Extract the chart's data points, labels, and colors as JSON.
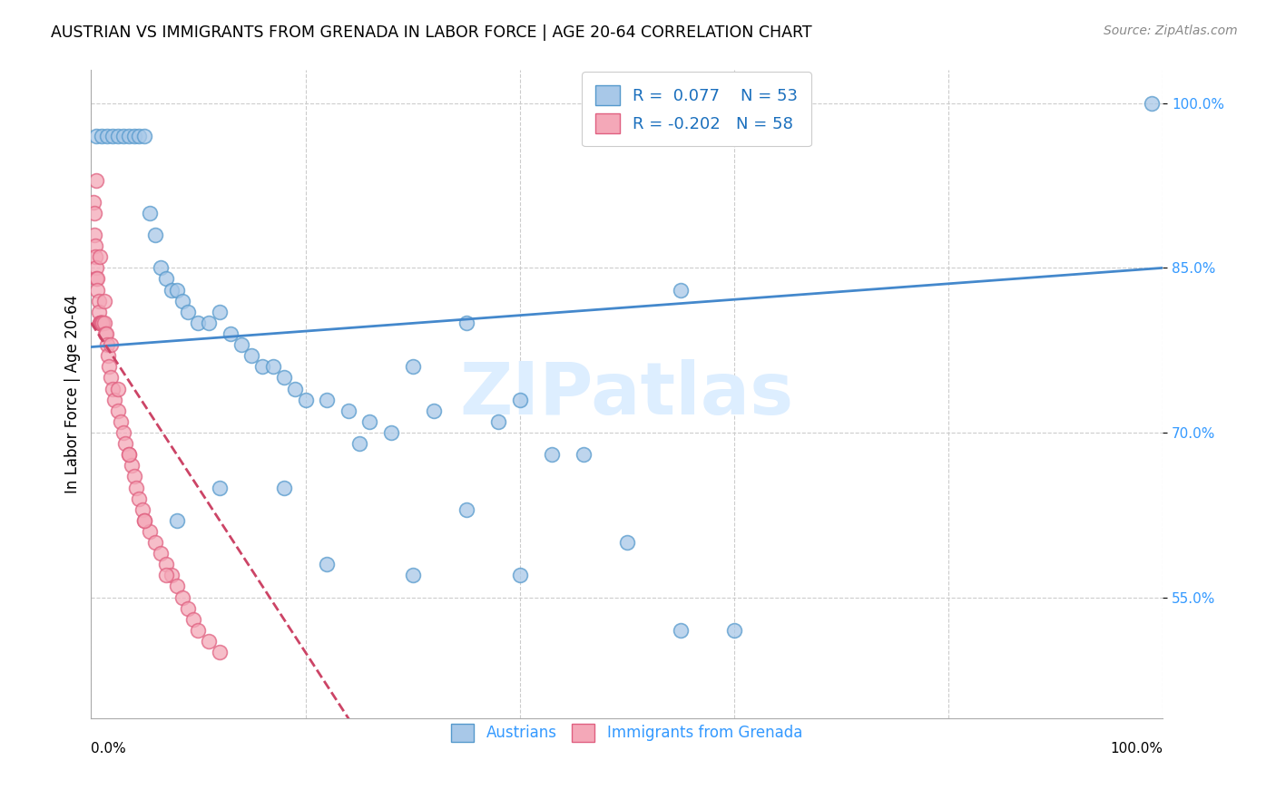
{
  "title": "AUSTRIAN VS IMMIGRANTS FROM GRENADA IN LABOR FORCE | AGE 20-64 CORRELATION CHART",
  "source": "Source: ZipAtlas.com",
  "ylabel": "In Labor Force | Age 20-64",
  "ytick_values": [
    0.55,
    0.7,
    0.85,
    1.0
  ],
  "ytick_labels": [
    "55.0%",
    "70.0%",
    "85.0%",
    "100.0%"
  ],
  "xlim": [
    0.0,
    1.0
  ],
  "ylim": [
    0.44,
    1.03
  ],
  "legend_r_blue": "0.077",
  "legend_n_blue": "53",
  "legend_r_pink": "-0.202",
  "legend_n_pink": "58",
  "blue_fill": "#a8c8e8",
  "blue_edge": "#5599cc",
  "pink_fill": "#f4a8b8",
  "pink_edge": "#e06080",
  "blue_line": "#4488cc",
  "pink_line": "#cc4466",
  "watermark_color": "#ddeeff",
  "austrians_x": [
    0.005,
    0.01,
    0.015,
    0.02,
    0.025,
    0.03,
    0.035,
    0.04,
    0.045,
    0.05,
    0.055,
    0.06,
    0.065,
    0.07,
    0.075,
    0.08,
    0.085,
    0.09,
    0.1,
    0.11,
    0.12,
    0.13,
    0.14,
    0.15,
    0.16,
    0.17,
    0.18,
    0.19,
    0.2,
    0.22,
    0.24,
    0.26,
    0.28,
    0.3,
    0.32,
    0.35,
    0.38,
    0.4,
    0.43,
    0.46,
    0.5,
    0.55,
    0.6,
    0.35,
    0.25,
    0.18,
    0.12,
    0.08,
    0.22,
    0.3,
    0.4,
    0.55,
    0.99
  ],
  "austrians_y": [
    0.97,
    0.97,
    0.97,
    0.97,
    0.97,
    0.97,
    0.97,
    0.97,
    0.97,
    0.97,
    0.9,
    0.88,
    0.85,
    0.84,
    0.83,
    0.83,
    0.82,
    0.81,
    0.8,
    0.8,
    0.81,
    0.79,
    0.78,
    0.77,
    0.76,
    0.76,
    0.75,
    0.74,
    0.73,
    0.73,
    0.72,
    0.71,
    0.7,
    0.76,
    0.72,
    0.8,
    0.71,
    0.73,
    0.68,
    0.68,
    0.6,
    0.52,
    0.52,
    0.63,
    0.69,
    0.65,
    0.65,
    0.62,
    0.58,
    0.57,
    0.57,
    0.83,
    1.0
  ],
  "grenada_x": [
    0.002,
    0.003,
    0.003,
    0.004,
    0.004,
    0.005,
    0.005,
    0.006,
    0.006,
    0.007,
    0.007,
    0.008,
    0.008,
    0.009,
    0.009,
    0.01,
    0.01,
    0.011,
    0.012,
    0.013,
    0.014,
    0.015,
    0.016,
    0.017,
    0.018,
    0.02,
    0.022,
    0.025,
    0.028,
    0.03,
    0.032,
    0.035,
    0.038,
    0.04,
    0.042,
    0.045,
    0.048,
    0.05,
    0.055,
    0.06,
    0.065,
    0.07,
    0.075,
    0.08,
    0.085,
    0.09,
    0.095,
    0.1,
    0.11,
    0.12,
    0.005,
    0.008,
    0.012,
    0.018,
    0.025,
    0.035,
    0.05,
    0.07
  ],
  "grenada_y": [
    0.91,
    0.9,
    0.88,
    0.87,
    0.86,
    0.85,
    0.84,
    0.84,
    0.83,
    0.82,
    0.81,
    0.8,
    0.8,
    0.8,
    0.8,
    0.8,
    0.8,
    0.8,
    0.8,
    0.79,
    0.79,
    0.78,
    0.77,
    0.76,
    0.75,
    0.74,
    0.73,
    0.72,
    0.71,
    0.7,
    0.69,
    0.68,
    0.67,
    0.66,
    0.65,
    0.64,
    0.63,
    0.62,
    0.61,
    0.6,
    0.59,
    0.58,
    0.57,
    0.56,
    0.55,
    0.54,
    0.53,
    0.52,
    0.51,
    0.5,
    0.93,
    0.86,
    0.82,
    0.78,
    0.74,
    0.68,
    0.62,
    0.57
  ]
}
